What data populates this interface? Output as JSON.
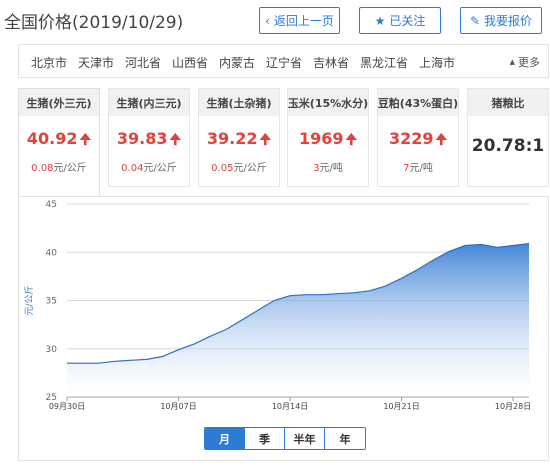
{
  "header": {
    "title": "全国价格(2019/10/29)",
    "back_label": "返回上一页",
    "follow_label": "已关注",
    "report_label": "我要报价"
  },
  "regions": {
    "items": [
      "北京市",
      "天津市",
      "河北省",
      "山西省",
      "内蒙古",
      "辽宁省",
      "吉林省",
      "黑龙江省",
      "上海市"
    ],
    "more_label": "更多"
  },
  "cards": [
    {
      "title": "生猪(外三元)",
      "value": "40.92",
      "trend": "up",
      "change": "0.08",
      "unit": "元/公斤"
    },
    {
      "title": "生猪(内三元)",
      "value": "39.83",
      "trend": "up",
      "change": "0.04",
      "unit": "元/公斤"
    },
    {
      "title": "生猪(土杂猪)",
      "value": "39.22",
      "trend": "up",
      "change": "0.05",
      "unit": "元/公斤"
    },
    {
      "title": "玉米(15%水分)",
      "value": "1969",
      "trend": "up",
      "change": "3",
      "unit": "元/吨"
    },
    {
      "title": "豆粕(43%蛋白)",
      "value": "3229",
      "trend": "up",
      "change": "7",
      "unit": "元/吨"
    },
    {
      "title": "猪粮比",
      "value": "20.78:1",
      "trend": "none",
      "change": "",
      "unit": ""
    }
  ],
  "colors": {
    "accent": "#2e7bd6",
    "up": "#e2413c",
    "area_top": "#3a7fd5",
    "area_bottom": "#ffffff"
  },
  "chart_data": {
    "type": "area",
    "ylabel": "元/公斤",
    "ylim": [
      25,
      45
    ],
    "yticks": [
      25,
      30,
      35,
      40,
      45
    ],
    "xtick_labels": [
      "09月30日",
      "10月07日",
      "10月14日",
      "10月21日",
      "10月28日"
    ],
    "x": [
      "09-30",
      "10-01",
      "10-02",
      "10-03",
      "10-04",
      "10-05",
      "10-06",
      "10-07",
      "10-08",
      "10-09",
      "10-10",
      "10-11",
      "10-12",
      "10-13",
      "10-14",
      "10-15",
      "10-16",
      "10-17",
      "10-18",
      "10-19",
      "10-20",
      "10-21",
      "10-22",
      "10-23",
      "10-24",
      "10-25",
      "10-26",
      "10-27",
      "10-28",
      "10-29"
    ],
    "values": [
      28.5,
      28.5,
      28.5,
      28.7,
      28.8,
      28.9,
      29.2,
      29.9,
      30.5,
      31.3,
      32.0,
      33.0,
      34.0,
      35.0,
      35.5,
      35.6,
      35.6,
      35.7,
      35.8,
      36.0,
      36.5,
      37.3,
      38.2,
      39.2,
      40.1,
      40.7,
      40.8,
      40.5,
      40.7,
      40.9
    ],
    "grid": true,
    "legend": "none"
  },
  "periods": {
    "items": [
      "月",
      "季",
      "半年",
      "年"
    ],
    "active": 0
  }
}
